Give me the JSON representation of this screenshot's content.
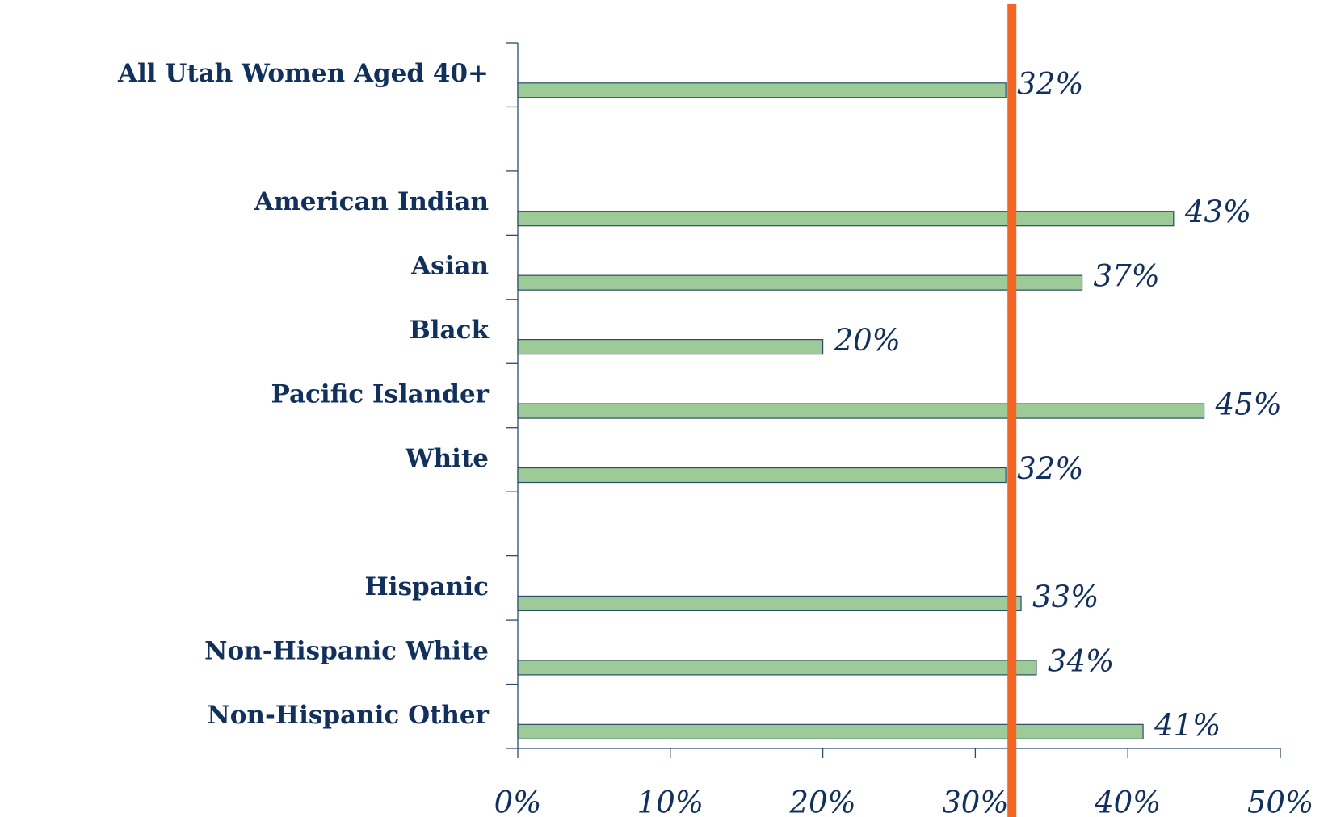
{
  "chart_data": {
    "type": "barh",
    "categories": [
      "All Utah Women Aged 40+",
      null,
      "American Indian",
      "Asian",
      "Black",
      "Pacific Islander",
      "White",
      null,
      "Hispanic",
      "Non-Hispanic White",
      "Non-Hispanic Other"
    ],
    "values": [
      32,
      null,
      43,
      37,
      20,
      45,
      32,
      null,
      33,
      34,
      41
    ],
    "value_labels": [
      "32%",
      null,
      "43%",
      "37%",
      "20%",
      "45%",
      "32%",
      null,
      "33%",
      "34%",
      "41%"
    ],
    "color": "#9dcb98",
    "xlim": [
      0,
      50
    ],
    "xticks": [
      {
        "value": 0,
        "label": "0%"
      },
      {
        "value": 10,
        "label": "10%"
      },
      {
        "value": 20,
        "label": "20%"
      },
      {
        "value": 30,
        "label": "30%"
      },
      {
        "value": 40,
        "label": "40%"
      },
      {
        "value": 50,
        "label": "50%"
      }
    ],
    "reference_line": {
      "value": 32.4,
      "color": "#f26522"
    }
  }
}
